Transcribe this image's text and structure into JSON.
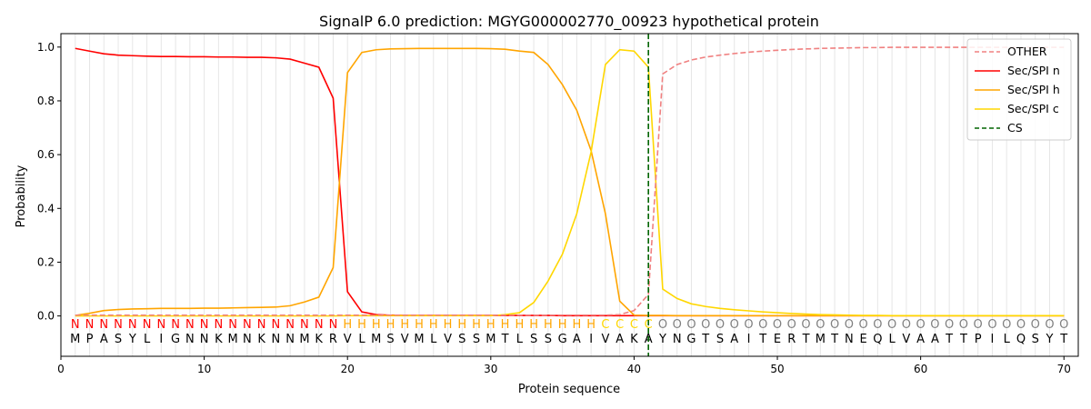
{
  "chart_data": {
    "type": "line",
    "title": "SignalP 6.0 prediction: MGYG000002770_00923 hypothetical protein",
    "xlabel": "Protein sequence",
    "ylabel": "Probability",
    "xlim": [
      0,
      71
    ],
    "ylim": [
      -0.15,
      1.05
    ],
    "xticks": [
      0,
      10,
      20,
      30,
      40,
      50,
      60,
      70
    ],
    "yticks": [
      0.0,
      0.2,
      0.4,
      0.6,
      0.8,
      1.0
    ],
    "grid": "vertical lines at every position",
    "legend_position": "top-right",
    "sequence": [
      "M",
      "P",
      "A",
      "S",
      "Y",
      "L",
      "I",
      "G",
      "N",
      "N",
      "K",
      "M",
      "N",
      "K",
      "N",
      "N",
      "M",
      "K",
      "R",
      "V",
      "L",
      "M",
      "S",
      "V",
      "M",
      "L",
      "V",
      "S",
      "S",
      "M",
      "T",
      "L",
      "S",
      "S",
      "G",
      "A",
      "I",
      "V",
      "A",
      "K",
      "A",
      "Y",
      "N",
      "G",
      "T",
      "S",
      "A",
      "I",
      "T",
      "E",
      "R",
      "T",
      "M",
      "T",
      "N",
      "E",
      "Q",
      "L",
      "V",
      "A",
      "A",
      "T",
      "T",
      "P",
      "I",
      "L",
      "Q",
      "S",
      "Y",
      "T"
    ],
    "labels": [
      "N",
      "N",
      "N",
      "N",
      "N",
      "N",
      "N",
      "N",
      "N",
      "N",
      "N",
      "N",
      "N",
      "N",
      "N",
      "N",
      "N",
      "N",
      "N",
      "H",
      "H",
      "H",
      "H",
      "H",
      "H",
      "H",
      "H",
      "H",
      "H",
      "H",
      "H",
      "H",
      "H",
      "H",
      "H",
      "H",
      "H",
      "C",
      "C",
      "C",
      "C",
      "O",
      "O",
      "O",
      "O",
      "O",
      "O",
      "O",
      "O",
      "O",
      "O",
      "O",
      "O",
      "O",
      "O",
      "O",
      "O",
      "O",
      "O",
      "O",
      "O",
      "O",
      "O",
      "O",
      "O",
      "O",
      "O",
      "O",
      "O",
      "O"
    ],
    "label_colors": {
      "N": "#ff0000",
      "H": "#ffa500",
      "C": "#ffd700",
      "O": "#808080"
    },
    "cleavage_site": 41,
    "series": [
      {
        "name": "OTHER",
        "color": "#f08080",
        "dash": true,
        "values": [
          0.003,
          0.003,
          0.003,
          0.003,
          0.003,
          0.003,
          0.003,
          0.003,
          0.003,
          0.003,
          0.003,
          0.003,
          0.003,
          0.003,
          0.003,
          0.003,
          0.003,
          0.003,
          0.003,
          0.003,
          0.003,
          0.003,
          0.003,
          0.003,
          0.003,
          0.003,
          0.003,
          0.003,
          0.003,
          0.003,
          0.003,
          0.003,
          0.003,
          0.003,
          0.003,
          0.003,
          0.003,
          0.003,
          0.005,
          0.02,
          0.08,
          0.9,
          0.935,
          0.952,
          0.963,
          0.97,
          0.976,
          0.981,
          0.985,
          0.988,
          0.991,
          0.993,
          0.995,
          0.996,
          0.997,
          0.998,
          0.998,
          0.999,
          0.999,
          0.999,
          0.999,
          0.999,
          0.999,
          0.999,
          0.999,
          0.999,
          0.999,
          0.999,
          0.999,
          0.999
        ]
      },
      {
        "name": "Sec/SPI n",
        "color": "#ff0000",
        "dash": false,
        "values": [
          0.995,
          0.985,
          0.975,
          0.97,
          0.968,
          0.966,
          0.965,
          0.965,
          0.964,
          0.964,
          0.963,
          0.963,
          0.962,
          0.962,
          0.96,
          0.955,
          0.94,
          0.925,
          0.81,
          0.09,
          0.015,
          0.005,
          0.003,
          0.002,
          0.002,
          0.002,
          0.002,
          0.002,
          0.002,
          0.002,
          0.002,
          0.002,
          0.002,
          0.002,
          0.001,
          0.001,
          0.001,
          0.001,
          0.001,
          0.001,
          0.001,
          0.001,
          0.001,
          0.001,
          0.001,
          0.001,
          0.001,
          0.001,
          0.001,
          0.001,
          0.001,
          0.001,
          0.001,
          0.001,
          0.001,
          0.001,
          0.001,
          0.001,
          0.001,
          0.001,
          0.001,
          0.001,
          0.001,
          0.001,
          0.001,
          0.001,
          0.001,
          0.001,
          0.001,
          0.001
        ]
      },
      {
        "name": "Sec/SPI h",
        "color": "#ffa500",
        "dash": false,
        "values": [
          0.002,
          0.01,
          0.02,
          0.024,
          0.026,
          0.027,
          0.028,
          0.028,
          0.028,
          0.029,
          0.029,
          0.03,
          0.031,
          0.032,
          0.033,
          0.038,
          0.052,
          0.07,
          0.18,
          0.905,
          0.98,
          0.99,
          0.993,
          0.994,
          0.995,
          0.995,
          0.995,
          0.995,
          0.995,
          0.994,
          0.992,
          0.985,
          0.98,
          0.935,
          0.86,
          0.765,
          0.615,
          0.38,
          0.055,
          0.003,
          0.002,
          0.002,
          0.001,
          0.001,
          0.001,
          0.001,
          0.001,
          0.001,
          0.001,
          0.001,
          0.001,
          0.001,
          0.001,
          0.001,
          0.001,
          0.001,
          0.001,
          0.001,
          0.001,
          0.001,
          0.001,
          0.001,
          0.001,
          0.001,
          0.001,
          0.001,
          0.001,
          0.001,
          0.001,
          0.001
        ]
      },
      {
        "name": "Sec/SPI c",
        "color": "#ffd700",
        "dash": false,
        "values": [
          0,
          0,
          0,
          0,
          0,
          0,
          0,
          0,
          0,
          0,
          0,
          0,
          0,
          0,
          0,
          0,
          0,
          0,
          0,
          0.001,
          0.001,
          0.001,
          0.001,
          0.001,
          0.001,
          0.001,
          0.001,
          0.001,
          0.001,
          0.001,
          0.005,
          0.012,
          0.05,
          0.13,
          0.23,
          0.38,
          0.61,
          0.935,
          0.99,
          0.985,
          0.925,
          0.1,
          0.065,
          0.045,
          0.035,
          0.028,
          0.023,
          0.019,
          0.015,
          0.012,
          0.009,
          0.007,
          0.005,
          0.004,
          0.003,
          0.002,
          0.002,
          0.001,
          0.001,
          0.001,
          0.001,
          0.001,
          0.001,
          0.001,
          0.001,
          0.001,
          0.001,
          0.001,
          0.001,
          0.001
        ]
      }
    ],
    "cs_legend": {
      "name": "CS",
      "color": "#006400"
    }
  }
}
